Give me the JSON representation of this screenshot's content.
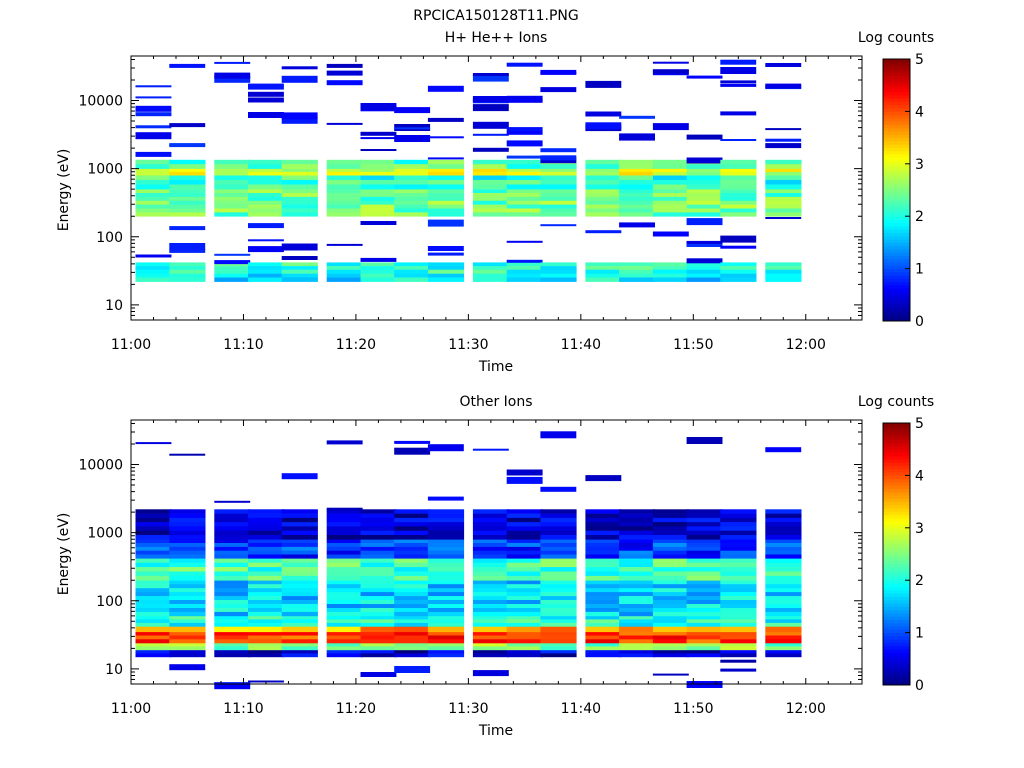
{
  "figure_title": "RPCICA150128T11.PNG",
  "chart_data": [
    {
      "type": "heatmap",
      "title": "H+ He++ Ions",
      "xlabel": "Time",
      "ylabel": "Energy (eV)",
      "y_scale": "log",
      "ylim": [
        6,
        45000
      ],
      "x_ticks": [
        "11:00",
        "11:10",
        "11:20",
        "11:30",
        "11:40",
        "11:50",
        "12:00"
      ],
      "y_ticks": [
        "10",
        "100",
        "1000",
        "10000"
      ],
      "colorbar": {
        "label": "Log counts",
        "ticks": [
          "0",
          "1",
          "2",
          "3",
          "4",
          "5"
        ],
        "range": [
          0,
          5
        ],
        "colormap": "jet"
      },
      "time_columns": [
        "11:02",
        "11:05",
        "11:09",
        "11:12",
        "11:15",
        "11:19",
        "11:22",
        "11:25",
        "11:28",
        "11:32",
        "11:35",
        "11:38",
        "11:42",
        "11:45",
        "11:48",
        "11:51",
        "11:54",
        "11:58"
      ],
      "bands": [
        {
          "e_low": 22,
          "e_high": 29,
          "value": 1.8
        },
        {
          "e_low": 29,
          "e_high": 42,
          "value": 2.1
        },
        {
          "e_low": 200,
          "e_high": 500,
          "value": 2.4
        },
        {
          "e_low": 500,
          "e_high": 800,
          "value": 2.1
        },
        {
          "e_low": 800,
          "e_high": 1000,
          "value": 2.9
        },
        {
          "e_low": 1000,
          "e_high": 1350,
          "value": 2.3
        }
      ],
      "sparse_level": 0.3,
      "sparse_range": [
        42,
        42000
      ]
    },
    {
      "type": "heatmap",
      "title": "Other Ions",
      "xlabel": "Time",
      "ylabel": "Energy (eV)",
      "y_scale": "log",
      "ylim": [
        6,
        45000
      ],
      "x_ticks": [
        "11:00",
        "11:10",
        "11:20",
        "11:30",
        "11:40",
        "11:50",
        "12:00"
      ],
      "y_ticks": [
        "10",
        "100",
        "1000",
        "10000"
      ],
      "colorbar": {
        "label": "Log counts",
        "ticks": [
          "0",
          "1",
          "2",
          "3",
          "4",
          "5"
        ],
        "range": [
          0,
          5
        ],
        "colormap": "jet"
      },
      "time_columns": [
        "11:02",
        "11:05",
        "11:09",
        "11:12",
        "11:15",
        "11:19",
        "11:22",
        "11:25",
        "11:28",
        "11:32",
        "11:35",
        "11:38",
        "11:42",
        "11:45",
        "11:48",
        "11:51",
        "11:54",
        "11:58"
      ],
      "bands": [
        {
          "e_low": 15,
          "e_high": 19,
          "value": 0.4
        },
        {
          "e_low": 19,
          "e_high": 24,
          "value": 2.5
        },
        {
          "e_low": 24,
          "e_high": 35,
          "value": 4.1
        },
        {
          "e_low": 35,
          "e_high": 42,
          "value": 3.6
        },
        {
          "e_low": 42,
          "e_high": 60,
          "value": 2.0
        },
        {
          "e_low": 60,
          "e_high": 200,
          "value": 1.7
        },
        {
          "e_low": 200,
          "e_high": 420,
          "value": 2.2
        },
        {
          "e_low": 420,
          "e_high": 800,
          "value": 0.9
        },
        {
          "e_low": 800,
          "e_high": 2200,
          "value": 0.4
        }
      ],
      "sparse_level": 0.2,
      "sparse_range": [
        6,
        42000
      ]
    }
  ]
}
